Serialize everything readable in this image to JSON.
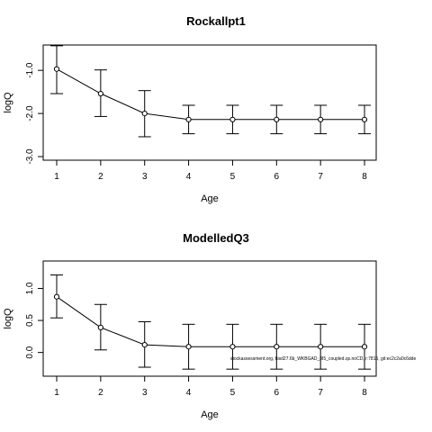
{
  "chart_data": [
    {
      "type": "line",
      "title": "Rockallpt1",
      "xlabel": "Age",
      "ylabel": "logQ",
      "x": [
        1,
        2,
        3,
        4,
        5,
        6,
        7,
        8
      ],
      "y_ticks": [
        -3.0,
        -2.0,
        -1.0
      ],
      "y_tick_labels": [
        "-3.0",
        "-2.0",
        "-1.0"
      ],
      "ylim": [
        -3.0,
        -0.6
      ],
      "series": [
        {
          "values": [
            -0.97,
            -1.54,
            -2.0,
            -2.14,
            -2.14,
            -2.14,
            -2.14,
            -2.14
          ],
          "lower": [
            -1.54,
            -2.07,
            -2.54,
            -2.47,
            -2.47,
            -2.47,
            -2.47,
            -2.47
          ],
          "upper": [
            -0.43,
            -0.99,
            -1.47,
            -1.81,
            -1.81,
            -1.81,
            -1.81,
            -1.81
          ]
        }
      ],
      "grid": false
    },
    {
      "type": "line",
      "title": "ModelledQ3",
      "xlabel": "Age",
      "ylabel": "logQ",
      "x": [
        1,
        2,
        3,
        4,
        5,
        6,
        7,
        8
      ],
      "y_ticks": [
        0.0,
        0.5,
        1.0
      ],
      "y_tick_labels": [
        "0.0",
        "0.5",
        "1.0"
      ],
      "ylim": [
        -0.3,
        1.4
      ],
      "series": [
        {
          "values": [
            0.87,
            0.39,
            0.12,
            0.09,
            0.09,
            0.09,
            0.09,
            0.09
          ],
          "lower": [
            0.54,
            0.04,
            -0.23,
            -0.26,
            -0.26,
            -0.26,
            -0.26,
            -0.26
          ],
          "upper": [
            1.21,
            0.75,
            0.48,
            0.44,
            0.44,
            0.44,
            0.44,
            0.44
          ]
        }
      ],
      "annotations": [
        "stockassessment.org, hisd27.6b_WKBGAD_8I5_coupled.qs.noCD, r:7815, git:ec2c2a0c6dde"
      ],
      "grid": false
    }
  ]
}
